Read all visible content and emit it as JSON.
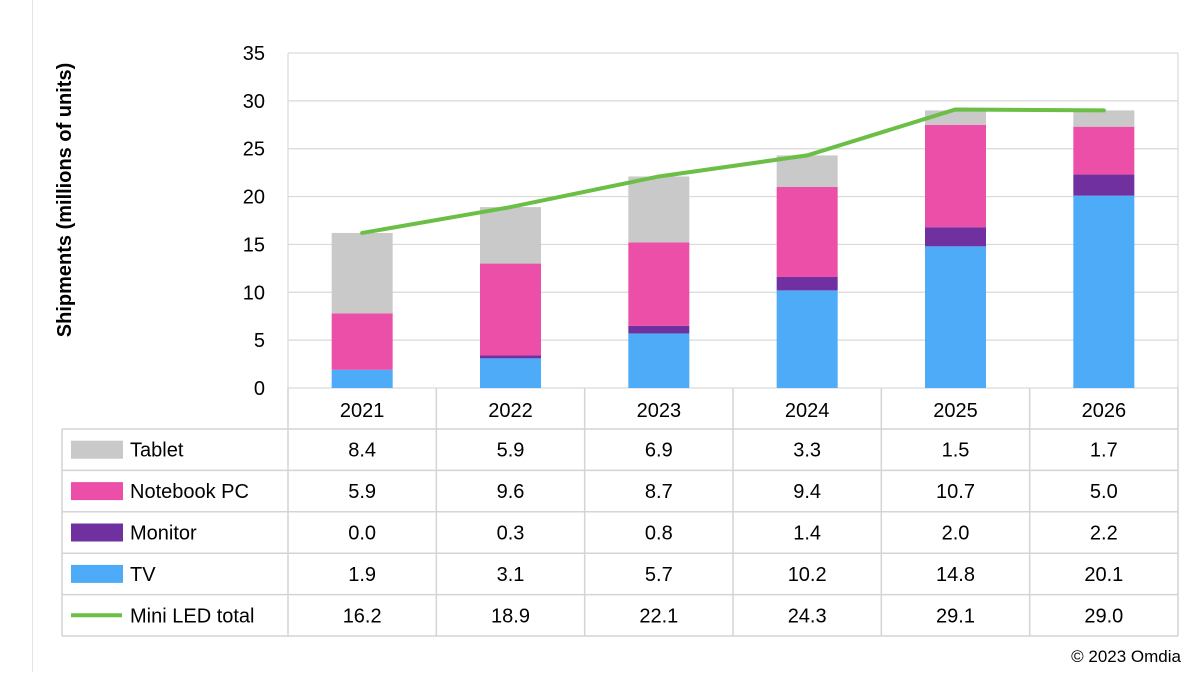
{
  "chart_data": {
    "type": "bar",
    "stacked": true,
    "categories": [
      "2021",
      "2022",
      "2023",
      "2024",
      "2025",
      "2026"
    ],
    "series": [
      {
        "name": "TV",
        "values": [
          1.9,
          3.1,
          5.7,
          10.2,
          14.8,
          20.1
        ],
        "color": "#4DABF7",
        "kind": "bar"
      },
      {
        "name": "Monitor",
        "values": [
          0.0,
          0.3,
          0.8,
          1.4,
          2.0,
          2.2
        ],
        "color": "#7030A0",
        "kind": "bar"
      },
      {
        "name": "Notebook PC",
        "values": [
          5.9,
          9.6,
          8.7,
          9.4,
          10.7,
          5.0
        ],
        "color": "#EC4FA8",
        "kind": "bar"
      },
      {
        "name": "Tablet",
        "values": [
          8.4,
          5.9,
          6.9,
          3.3,
          1.5,
          1.7
        ],
        "color": "#C9C9C9",
        "kind": "bar"
      },
      {
        "name": "Mini LED total",
        "values": [
          16.2,
          18.9,
          22.1,
          24.3,
          29.1,
          29.0
        ],
        "color": "#6BBF47",
        "kind": "line"
      }
    ],
    "table_rows": [
      {
        "name": "Tablet",
        "values": [
          "8.4",
          "5.9",
          "6.9",
          "3.3",
          "1.5",
          "1.7"
        ]
      },
      {
        "name": "Notebook PC",
        "values": [
          "5.9",
          "9.6",
          "8.7",
          "9.4",
          "10.7",
          "5.0"
        ]
      },
      {
        "name": "Monitor",
        "values": [
          "0.0",
          "0.3",
          "0.8",
          "1.4",
          "2.0",
          "2.2"
        ]
      },
      {
        "name": "TV",
        "values": [
          "1.9",
          "3.1",
          "5.7",
          "10.2",
          "14.8",
          "20.1"
        ]
      },
      {
        "name": "Mini LED total",
        "values": [
          "16.2",
          "18.9",
          "22.1",
          "24.3",
          "29.1",
          "29.0"
        ]
      }
    ],
    "ylabel": "Shipments (millions of units)",
    "ylim": [
      0,
      35
    ],
    "yticks": [
      "0",
      "5",
      "10",
      "15",
      "20",
      "25",
      "30",
      "35"
    ],
    "grid": true,
    "legend": "data table below the chart",
    "gridline_color": "#D9D9D9",
    "table_border_color": "#D4D4D4",
    "text_color": "#000000"
  },
  "footer": {
    "copyright": "© 2023 Omdia"
  }
}
